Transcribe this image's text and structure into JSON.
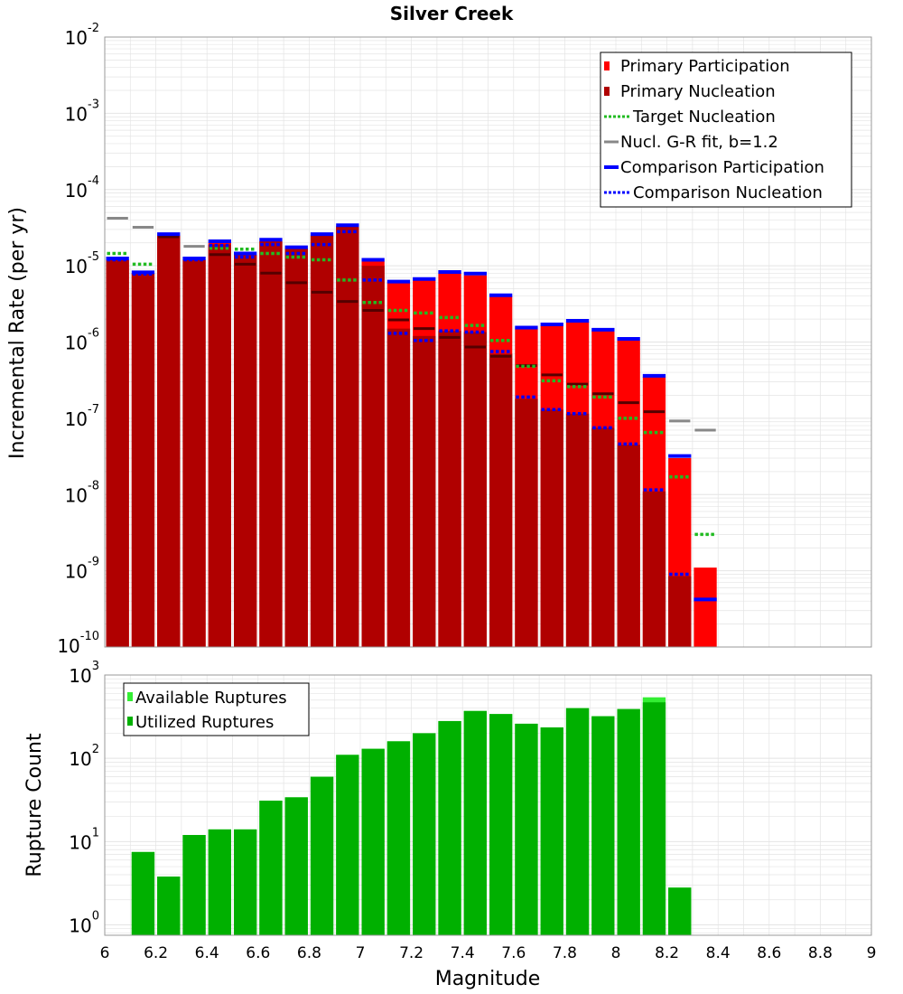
{
  "title": "Silver Creek",
  "xlabel": "Magnitude",
  "x_ticks": [
    "6",
    "6.2",
    "6.4",
    "6.6",
    "6.8",
    "7",
    "7.2",
    "7.4",
    "7.6",
    "7.8",
    "8",
    "8.2",
    "8.4",
    "8.6",
    "8.8",
    "9"
  ],
  "colors": {
    "primary_participation": "#ff0000",
    "primary_nucleation": "#b00000",
    "target_nucleation": "#22bb22",
    "gr_fit": "#888888",
    "comparison": "#0000ff",
    "available": "#33ee33",
    "utilized": "#00b000",
    "grid": "#e4e4e4"
  },
  "chart_data": [
    {
      "type": "bar",
      "ylabel": "Incremental Rate (per yr)",
      "log_y": true,
      "ylim": [
        1e-10,
        0.01
      ],
      "xlim": [
        6,
        9
      ],
      "y_ticks": [
        {
          "base": "10",
          "exp": "-2",
          "value": 0.01
        },
        {
          "base": "10",
          "exp": "-3",
          "value": 0.001
        },
        {
          "base": "10",
          "exp": "-4",
          "value": 0.0001
        },
        {
          "base": "10",
          "exp": "-5",
          "value": 1e-05
        },
        {
          "base": "10",
          "exp": "-6",
          "value": 1e-06
        },
        {
          "base": "10",
          "exp": "-7",
          "value": 1e-07
        },
        {
          "base": "10",
          "exp": "-8",
          "value": 1e-08
        },
        {
          "base": "10",
          "exp": "-9",
          "value": 1e-09
        },
        {
          "base": "10",
          "exp": "-10",
          "value": 1e-10
        }
      ],
      "x": [
        6.05,
        6.15,
        6.25,
        6.35,
        6.45,
        6.55,
        6.65,
        6.75,
        6.85,
        6.95,
        7.05,
        7.15,
        7.25,
        7.35,
        7.45,
        7.55,
        7.65,
        7.75,
        7.85,
        7.95,
        8.05,
        8.15,
        8.25,
        8.35
      ],
      "legend_position": "top-right",
      "legend": [
        {
          "label": "Primary Participation",
          "style": "block",
          "color": "#ff0000"
        },
        {
          "label": "Primary Nucleation",
          "style": "block",
          "color": "#b00000"
        },
        {
          "label": "Target Nucleation",
          "style": "dotted",
          "color": "#22bb22"
        },
        {
          "label": "Nucl. G-R fit, b=1.2",
          "style": "solid",
          "color": "#888888"
        },
        {
          "label": "Comparison Participation",
          "style": "thick",
          "color": "#0000ff"
        },
        {
          "label": "Comparison Nucleation",
          "style": "dotted",
          "color": "#0000ff"
        }
      ],
      "series": [
        {
          "name": "Primary Participation",
          "values": [
            1.2e-05,
            8e-06,
            2.5e-05,
            1.2e-05,
            2e-05,
            1.4e-05,
            2.1e-05,
            1.7e-05,
            2.5e-05,
            3.3e-05,
            1.15e-05,
            6e-06,
            6.5e-06,
            8e-06,
            7.5e-06,
            4e-06,
            1.5e-06,
            1.65e-06,
            1.85e-06,
            1.4e-06,
            1.05e-06,
            3.5e-07,
            3e-08,
            1.1e-09
          ]
        },
        {
          "name": "Primary Nucleation",
          "values": [
            1.2e-05,
            8e-06,
            2.5e-05,
            1.2e-05,
            1.9e-05,
            1.4e-05,
            2.1e-05,
            1.7e-05,
            2.5e-05,
            3.3e-05,
            1e-05,
            1.5e-06,
            1.2e-06,
            1.4e-06,
            1.35e-06,
            7e-07,
            1.8e-07,
            1.3e-07,
            1.15e-07,
            7.5e-08,
            4.5e-08,
            1.1e-08,
            8.5e-10,
            null
          ]
        },
        {
          "name": "Target Nucleation",
          "values": [
            1.45e-05,
            1.05e-05,
            null,
            null,
            1.7e-05,
            1.65e-05,
            1.45e-05,
            1.3e-05,
            1.2e-05,
            6.5e-06,
            3.3e-06,
            2.6e-06,
            2.4e-06,
            2.1e-06,
            1.65e-06,
            1.05e-06,
            4.8e-07,
            3.1e-07,
            2.6e-07,
            1.9e-07,
            1e-07,
            6.5e-08,
            1.7e-08,
            3e-09
          ]
        },
        {
          "name": "Nucl. G-R fit, b=1.2",
          "values": [
            4.2e-05,
            3.2e-05,
            2.4e-05,
            1.8e-05,
            1.4e-05,
            1.05e-05,
            8e-06,
            6e-06,
            4.5e-06,
            3.4e-06,
            2.6e-06,
            1.95e-06,
            1.5e-06,
            1.15e-06,
            8.6e-07,
            6.5e-07,
            4.9e-07,
            3.7e-07,
            2.8e-07,
            2.1e-07,
            1.6e-07,
            1.22e-07,
            9.2e-08,
            7e-08
          ]
        },
        {
          "name": "Comparison Participation",
          "values": [
            1.25e-05,
            8.2e-06,
            2.6e-05,
            1.25e-05,
            2.1e-05,
            1.45e-05,
            2.2e-05,
            1.75e-05,
            2.6e-05,
            3.4e-05,
            1.2e-05,
            6.2e-06,
            6.7e-06,
            8.3e-06,
            7.9e-06,
            4.1e-06,
            1.55e-06,
            1.7e-06,
            1.9e-06,
            1.45e-06,
            1.1e-06,
            3.6e-07,
            3.2e-08,
            4.2e-10
          ]
        },
        {
          "name": "Comparison Nucleation",
          "values": [
            1.2e-05,
            7.8e-06,
            null,
            1.2e-05,
            1.85e-05,
            1.3e-05,
            1.9e-05,
            1.45e-05,
            1.9e-05,
            2.8e-05,
            6.5e-06,
            1.3e-06,
            1.05e-06,
            1.4e-06,
            1.35e-06,
            7.5e-07,
            1.9e-07,
            1.3e-07,
            1.15e-07,
            7.5e-08,
            4.6e-08,
            1.15e-08,
            9e-10,
            null
          ]
        }
      ]
    },
    {
      "type": "bar",
      "ylabel": "Rupture Count",
      "log_y": true,
      "ylim": [
        0.75,
        1000
      ],
      "xlim": [
        6,
        9
      ],
      "y_ticks": [
        {
          "base": "10",
          "exp": "3",
          "value": 1000
        },
        {
          "base": "10",
          "exp": "2",
          "value": 100
        },
        {
          "base": "10",
          "exp": "1",
          "value": 10
        },
        {
          "base": "10",
          "exp": "0",
          "value": 1
        }
      ],
      "x": [
        6.15,
        6.25,
        6.35,
        6.45,
        6.55,
        6.65,
        6.75,
        6.85,
        6.95,
        7.05,
        7.15,
        7.25,
        7.35,
        7.45,
        7.55,
        7.65,
        7.75,
        7.85,
        7.95,
        8.05,
        8.15,
        8.25
      ],
      "legend_position": "top-left",
      "legend": [
        {
          "label": "Available Ruptures",
          "color": "#33ee33"
        },
        {
          "label": "Utilized Ruptures",
          "color": "#00b000"
        }
      ],
      "series": [
        {
          "name": "Available Ruptures",
          "values": [
            7.5,
            3.8,
            12,
            14,
            14,
            31,
            34,
            60,
            110,
            130,
            160,
            200,
            280,
            370,
            340,
            260,
            235,
            400,
            320,
            390,
            540,
            2.8
          ]
        },
        {
          "name": "Utilized Ruptures",
          "values": [
            7.5,
            3.8,
            12,
            14,
            14,
            31,
            34,
            60,
            110,
            130,
            160,
            200,
            280,
            370,
            340,
            260,
            235,
            400,
            320,
            390,
            470,
            2.8
          ]
        }
      ]
    }
  ]
}
